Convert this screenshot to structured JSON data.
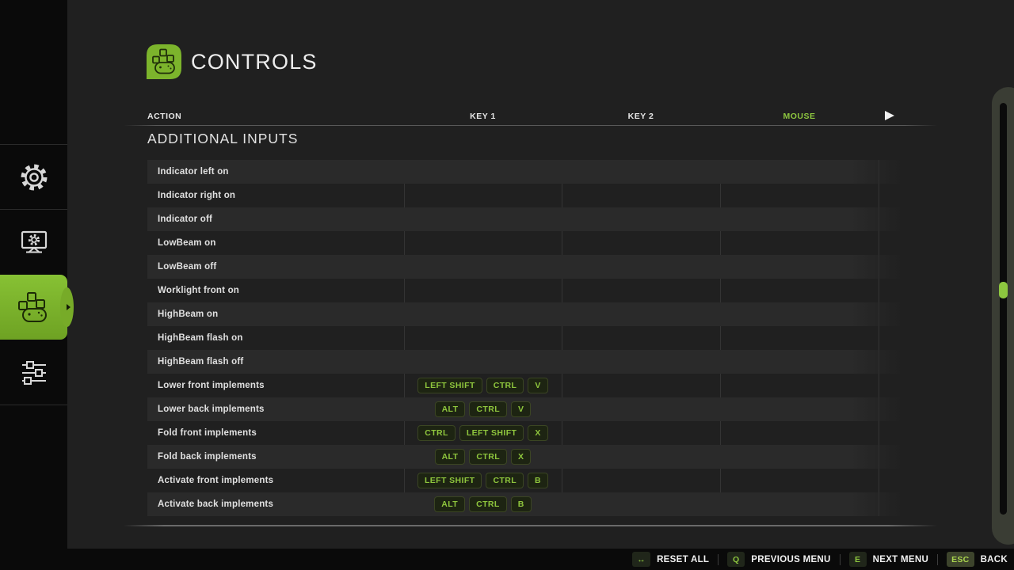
{
  "app": {
    "title": "CONTROLS"
  },
  "sidebar": {
    "items": [
      {
        "id": "game-settings",
        "icon": "gear-icon",
        "active": false
      },
      {
        "id": "display-settings",
        "icon": "monitor-settings-icon",
        "active": false
      },
      {
        "id": "controls",
        "icon": "gamepad-icon",
        "active": true
      },
      {
        "id": "advanced-settings",
        "icon": "sliders-icon",
        "active": false
      }
    ]
  },
  "columns": {
    "action": "ACTION",
    "key1": "KEY 1",
    "key2": "KEY 2",
    "mouse": "MOUSE"
  },
  "section_title": "ADDITIONAL INPUTS",
  "table": {
    "rows": [
      {
        "action": "Indicator left on",
        "key1": []
      },
      {
        "action": "Indicator right on",
        "key1": []
      },
      {
        "action": "Indicator off",
        "key1": []
      },
      {
        "action": "LowBeam on",
        "key1": []
      },
      {
        "action": "LowBeam off",
        "key1": []
      },
      {
        "action": "Worklight front on",
        "key1": []
      },
      {
        "action": "HighBeam on",
        "key1": []
      },
      {
        "action": "HighBeam flash on",
        "key1": []
      },
      {
        "action": "HighBeam flash off",
        "key1": []
      },
      {
        "action": "Lower front implements",
        "key1": [
          "LEFT SHIFT",
          "CTRL",
          "V"
        ]
      },
      {
        "action": "Lower back implements",
        "key1": [
          "ALT",
          "CTRL",
          "V"
        ]
      },
      {
        "action": "Fold front implements",
        "key1": [
          "CTRL",
          "LEFT SHIFT",
          "X"
        ]
      },
      {
        "action": "Fold back implements",
        "key1": [
          "ALT",
          "CTRL",
          "X"
        ]
      },
      {
        "action": "Activate front implements",
        "key1": [
          "LEFT SHIFT",
          "CTRL",
          "B"
        ]
      },
      {
        "action": "Activate back implements",
        "key1": [
          "ALT",
          "CTRL",
          "B"
        ]
      }
    ]
  },
  "footer": {
    "items": [
      {
        "key": "↔",
        "label": "RESET ALL",
        "highlighted": false
      },
      {
        "key": "Q",
        "label": "PREVIOUS MENU",
        "highlighted": false
      },
      {
        "key": "E",
        "label": "NEXT MENU",
        "highlighted": false
      },
      {
        "key": "ESC",
        "label": "BACK",
        "highlighted": true
      }
    ]
  },
  "colors": {
    "accent_green": "#8dc63f",
    "icon_green": "#7cb42c",
    "stripe": "#2a2a2a",
    "main_bg": "#202020",
    "panel_bg": "#0a0a0a"
  }
}
